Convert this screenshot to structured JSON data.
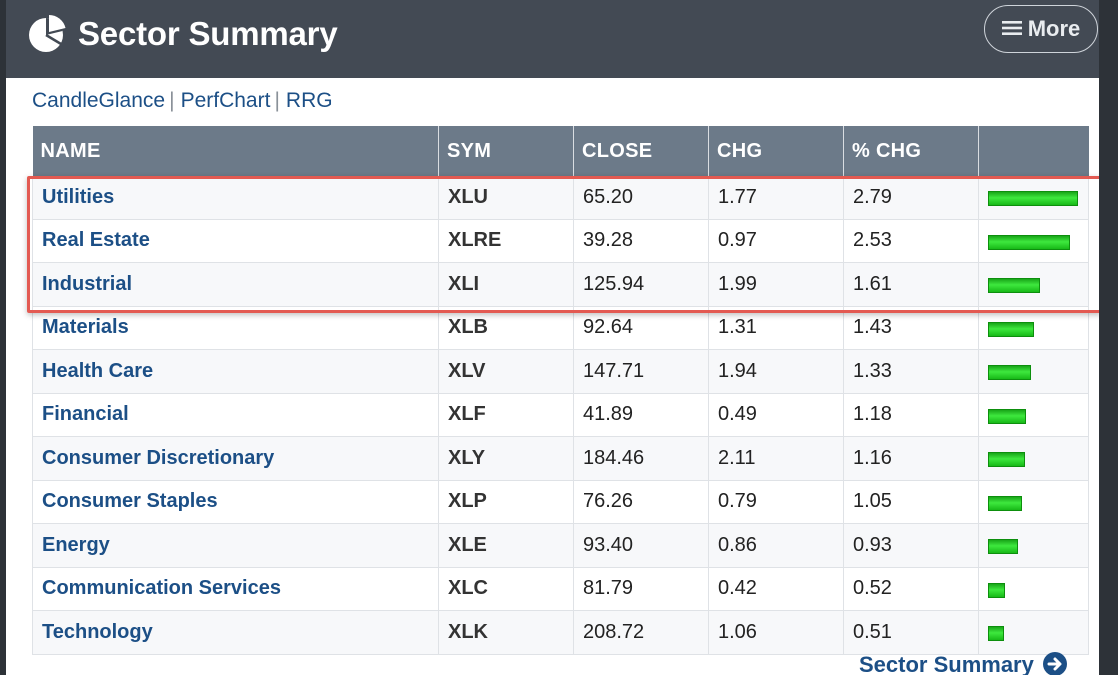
{
  "header": {
    "title": "Sector Summary",
    "more_label": "More",
    "logo_icon": "pie-chart-icon",
    "menu_icon": "hamburger-icon"
  },
  "links": [
    "CandleGlance",
    "PerfChart",
    "RRG"
  ],
  "table": {
    "columns": [
      "NAME",
      "SYM",
      "CLOSE",
      "CHG",
      "% CHG",
      ""
    ],
    "rows": [
      {
        "name": "Utilities",
        "sym": "XLU",
        "close": "65.20",
        "chg": "1.77",
        "pct": "2.79",
        "bar": 2.79
      },
      {
        "name": "Real Estate",
        "sym": "XLRE",
        "close": "39.28",
        "chg": "0.97",
        "pct": "2.53",
        "bar": 2.53
      },
      {
        "name": "Industrial",
        "sym": "XLI",
        "close": "125.94",
        "chg": "1.99",
        "pct": "1.61",
        "bar": 1.61
      },
      {
        "name": "Materials",
        "sym": "XLB",
        "close": "92.64",
        "chg": "1.31",
        "pct": "1.43",
        "bar": 1.43
      },
      {
        "name": "Health Care",
        "sym": "XLV",
        "close": "147.71",
        "chg": "1.94",
        "pct": "1.33",
        "bar": 1.33
      },
      {
        "name": "Financial",
        "sym": "XLF",
        "close": "41.89",
        "chg": "0.49",
        "pct": "1.18",
        "bar": 1.18
      },
      {
        "name": "Consumer Discretionary",
        "sym": "XLY",
        "close": "184.46",
        "chg": "2.11",
        "pct": "1.16",
        "bar": 1.16
      },
      {
        "name": "Consumer Staples",
        "sym": "XLP",
        "close": "76.26",
        "chg": "0.79",
        "pct": "1.05",
        "bar": 1.05
      },
      {
        "name": "Energy",
        "sym": "XLE",
        "close": "93.40",
        "chg": "0.86",
        "pct": "0.93",
        "bar": 0.93
      },
      {
        "name": "Communication Services",
        "sym": "XLC",
        "close": "81.79",
        "chg": "0.42",
        "pct": "0.52",
        "bar": 0.52
      },
      {
        "name": "Technology",
        "sym": "XLK",
        "close": "208.72",
        "chg": "1.06",
        "pct": "0.51",
        "bar": 0.51
      }
    ]
  },
  "footer": {
    "link_label": "Sector Summary",
    "arrow_icon": "circle-arrow-right-icon"
  },
  "colors": {
    "header_bg": "#434a54",
    "table_header_bg": "#6c7a89",
    "link": "#1c4f86",
    "bar_green": "#2fd12f",
    "highlight": "#e35a52"
  }
}
